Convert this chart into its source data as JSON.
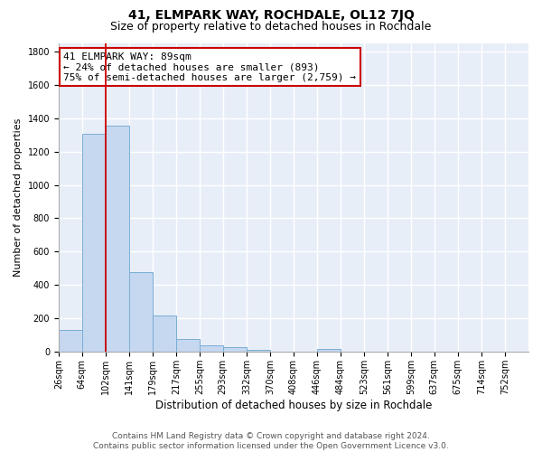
{
  "title": "41, ELMPARK WAY, ROCHDALE, OL12 7JQ",
  "subtitle": "Size of property relative to detached houses in Rochdale",
  "xlabel": "Distribution of detached houses by size in Rochdale",
  "ylabel": "Number of detached properties",
  "bar_color": "#c5d8f0",
  "bar_edge_color": "#7aadd4",
  "background_color": "#e8eef8",
  "bins": [
    26,
    64,
    102,
    141,
    179,
    217,
    255,
    293,
    332,
    370,
    408,
    446,
    484,
    523,
    561,
    599,
    637,
    675,
    714,
    752,
    790
  ],
  "values": [
    130,
    1305,
    1355,
    480,
    220,
    75,
    42,
    27,
    15,
    0,
    0,
    20,
    0,
    0,
    0,
    0,
    0,
    0,
    0,
    0
  ],
  "property_size": 89,
  "vline_x": 102,
  "vline_color": "#cc0000",
  "annotation_line1": "41 ELMPARK WAY: 89sqm",
  "annotation_line2": "← 24% of detached houses are smaller (893)",
  "annotation_line3": "75% of semi-detached houses are larger (2,759) →",
  "annotation_box_color": "#ffffff",
  "annotation_box_edge_color": "#cc0000",
  "ylim": [
    0,
    1850
  ],
  "xlim": [
    26,
    790
  ],
  "yticks": [
    0,
    200,
    400,
    600,
    800,
    1000,
    1200,
    1400,
    1600,
    1800
  ],
  "footer_text": "Contains HM Land Registry data © Crown copyright and database right 2024.\nContains public sector information licensed under the Open Government Licence v3.0.",
  "title_fontsize": 10,
  "subtitle_fontsize": 9,
  "xlabel_fontsize": 8.5,
  "ylabel_fontsize": 8,
  "tick_fontsize": 7,
  "annotation_fontsize": 8,
  "footer_fontsize": 6.5
}
